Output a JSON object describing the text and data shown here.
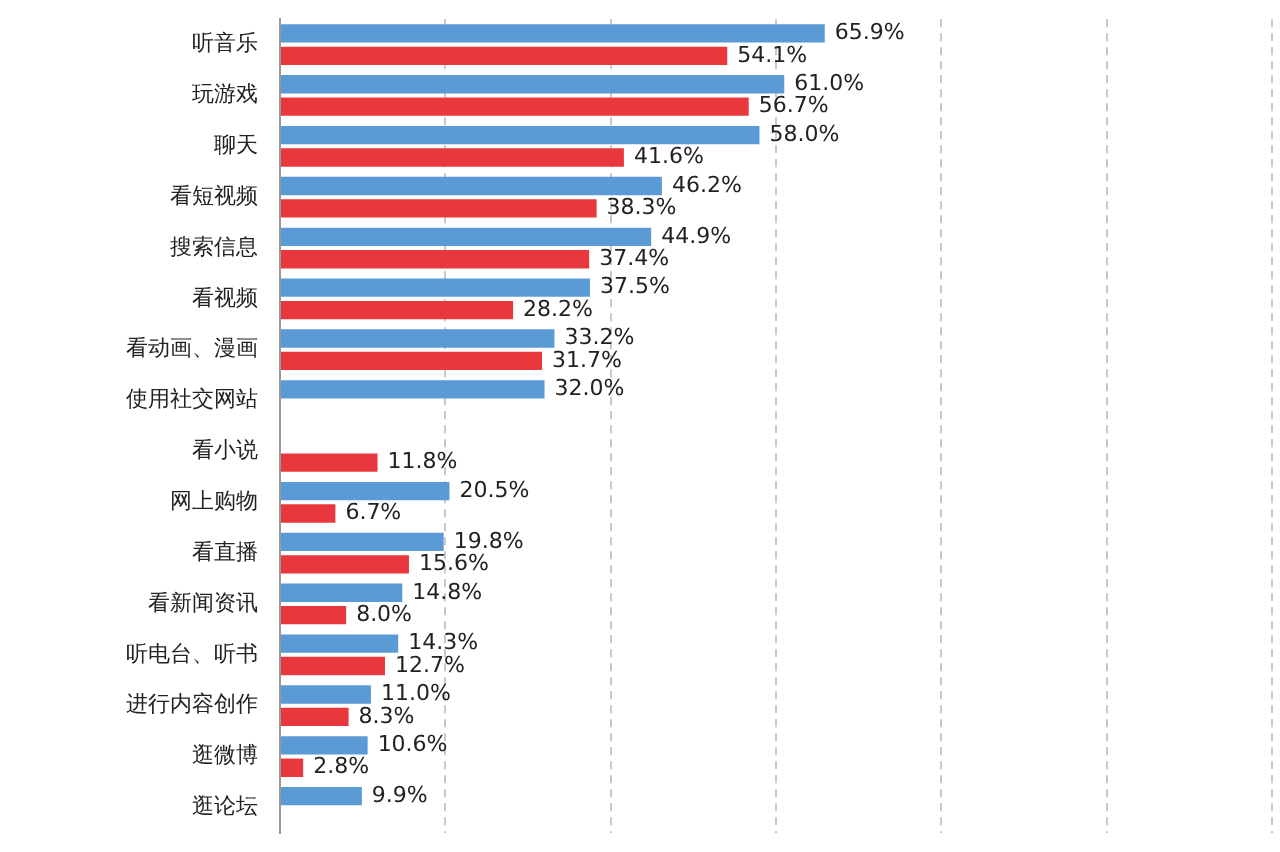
{
  "chart_data": {
    "type": "bar",
    "orientation": "horizontal",
    "categories": [
      "听音乐",
      "玩游戏",
      "聊天",
      "看短视频",
      "搜索信息",
      "看视频",
      "看动画、漫画",
      "使用社交网站",
      "看小说",
      "网上购物",
      "看直播",
      "看新闻资讯",
      "听电台、听书",
      "进行内容创作",
      "逛微博",
      "逛论坛"
    ],
    "series": [
      {
        "color": "#5b9bd5",
        "values": [
          65.9,
          61.0,
          58.0,
          46.2,
          44.9,
          37.5,
          33.2,
          32.0,
          null,
          20.5,
          19.8,
          14.8,
          14.3,
          11.0,
          10.6,
          9.9
        ],
        "value_labels": [
          "65.9%",
          "61.0%",
          "58.0%",
          "46.2%",
          "44.9%",
          "37.5%",
          "33.2%",
          "32.0%",
          null,
          "20.5%",
          "19.8%",
          "14.8%",
          "14.3%",
          "11.0%",
          "10.6%",
          "9.9%"
        ]
      },
      {
        "color": "#e8383d",
        "values": [
          54.1,
          56.7,
          41.6,
          38.3,
          37.4,
          28.2,
          31.7,
          null,
          11.8,
          6.7,
          15.6,
          8.0,
          12.7,
          8.3,
          2.8,
          null
        ],
        "value_labels": [
          "54.1%",
          "56.7%",
          "41.6%",
          "38.3%",
          "37.4%",
          "28.2%",
          "31.7%",
          null,
          "11.8%",
          "6.7%",
          "15.6%",
          "8.0%",
          "12.7%",
          "8.3%",
          "2.8%",
          null
        ]
      }
    ],
    "xlim": [
      0,
      120
    ],
    "xticks": [
      {
        "value": 0,
        "label": null
      },
      {
        "value": 20,
        "label": null
      },
      {
        "value": 40,
        "label": null
      },
      {
        "value": 60,
        "label": null
      },
      {
        "value": 80,
        "label": null
      },
      {
        "value": 100,
        "label": null
      },
      {
        "value": 120,
        "label": null
      }
    ],
    "grid": "x",
    "legend": false
  }
}
